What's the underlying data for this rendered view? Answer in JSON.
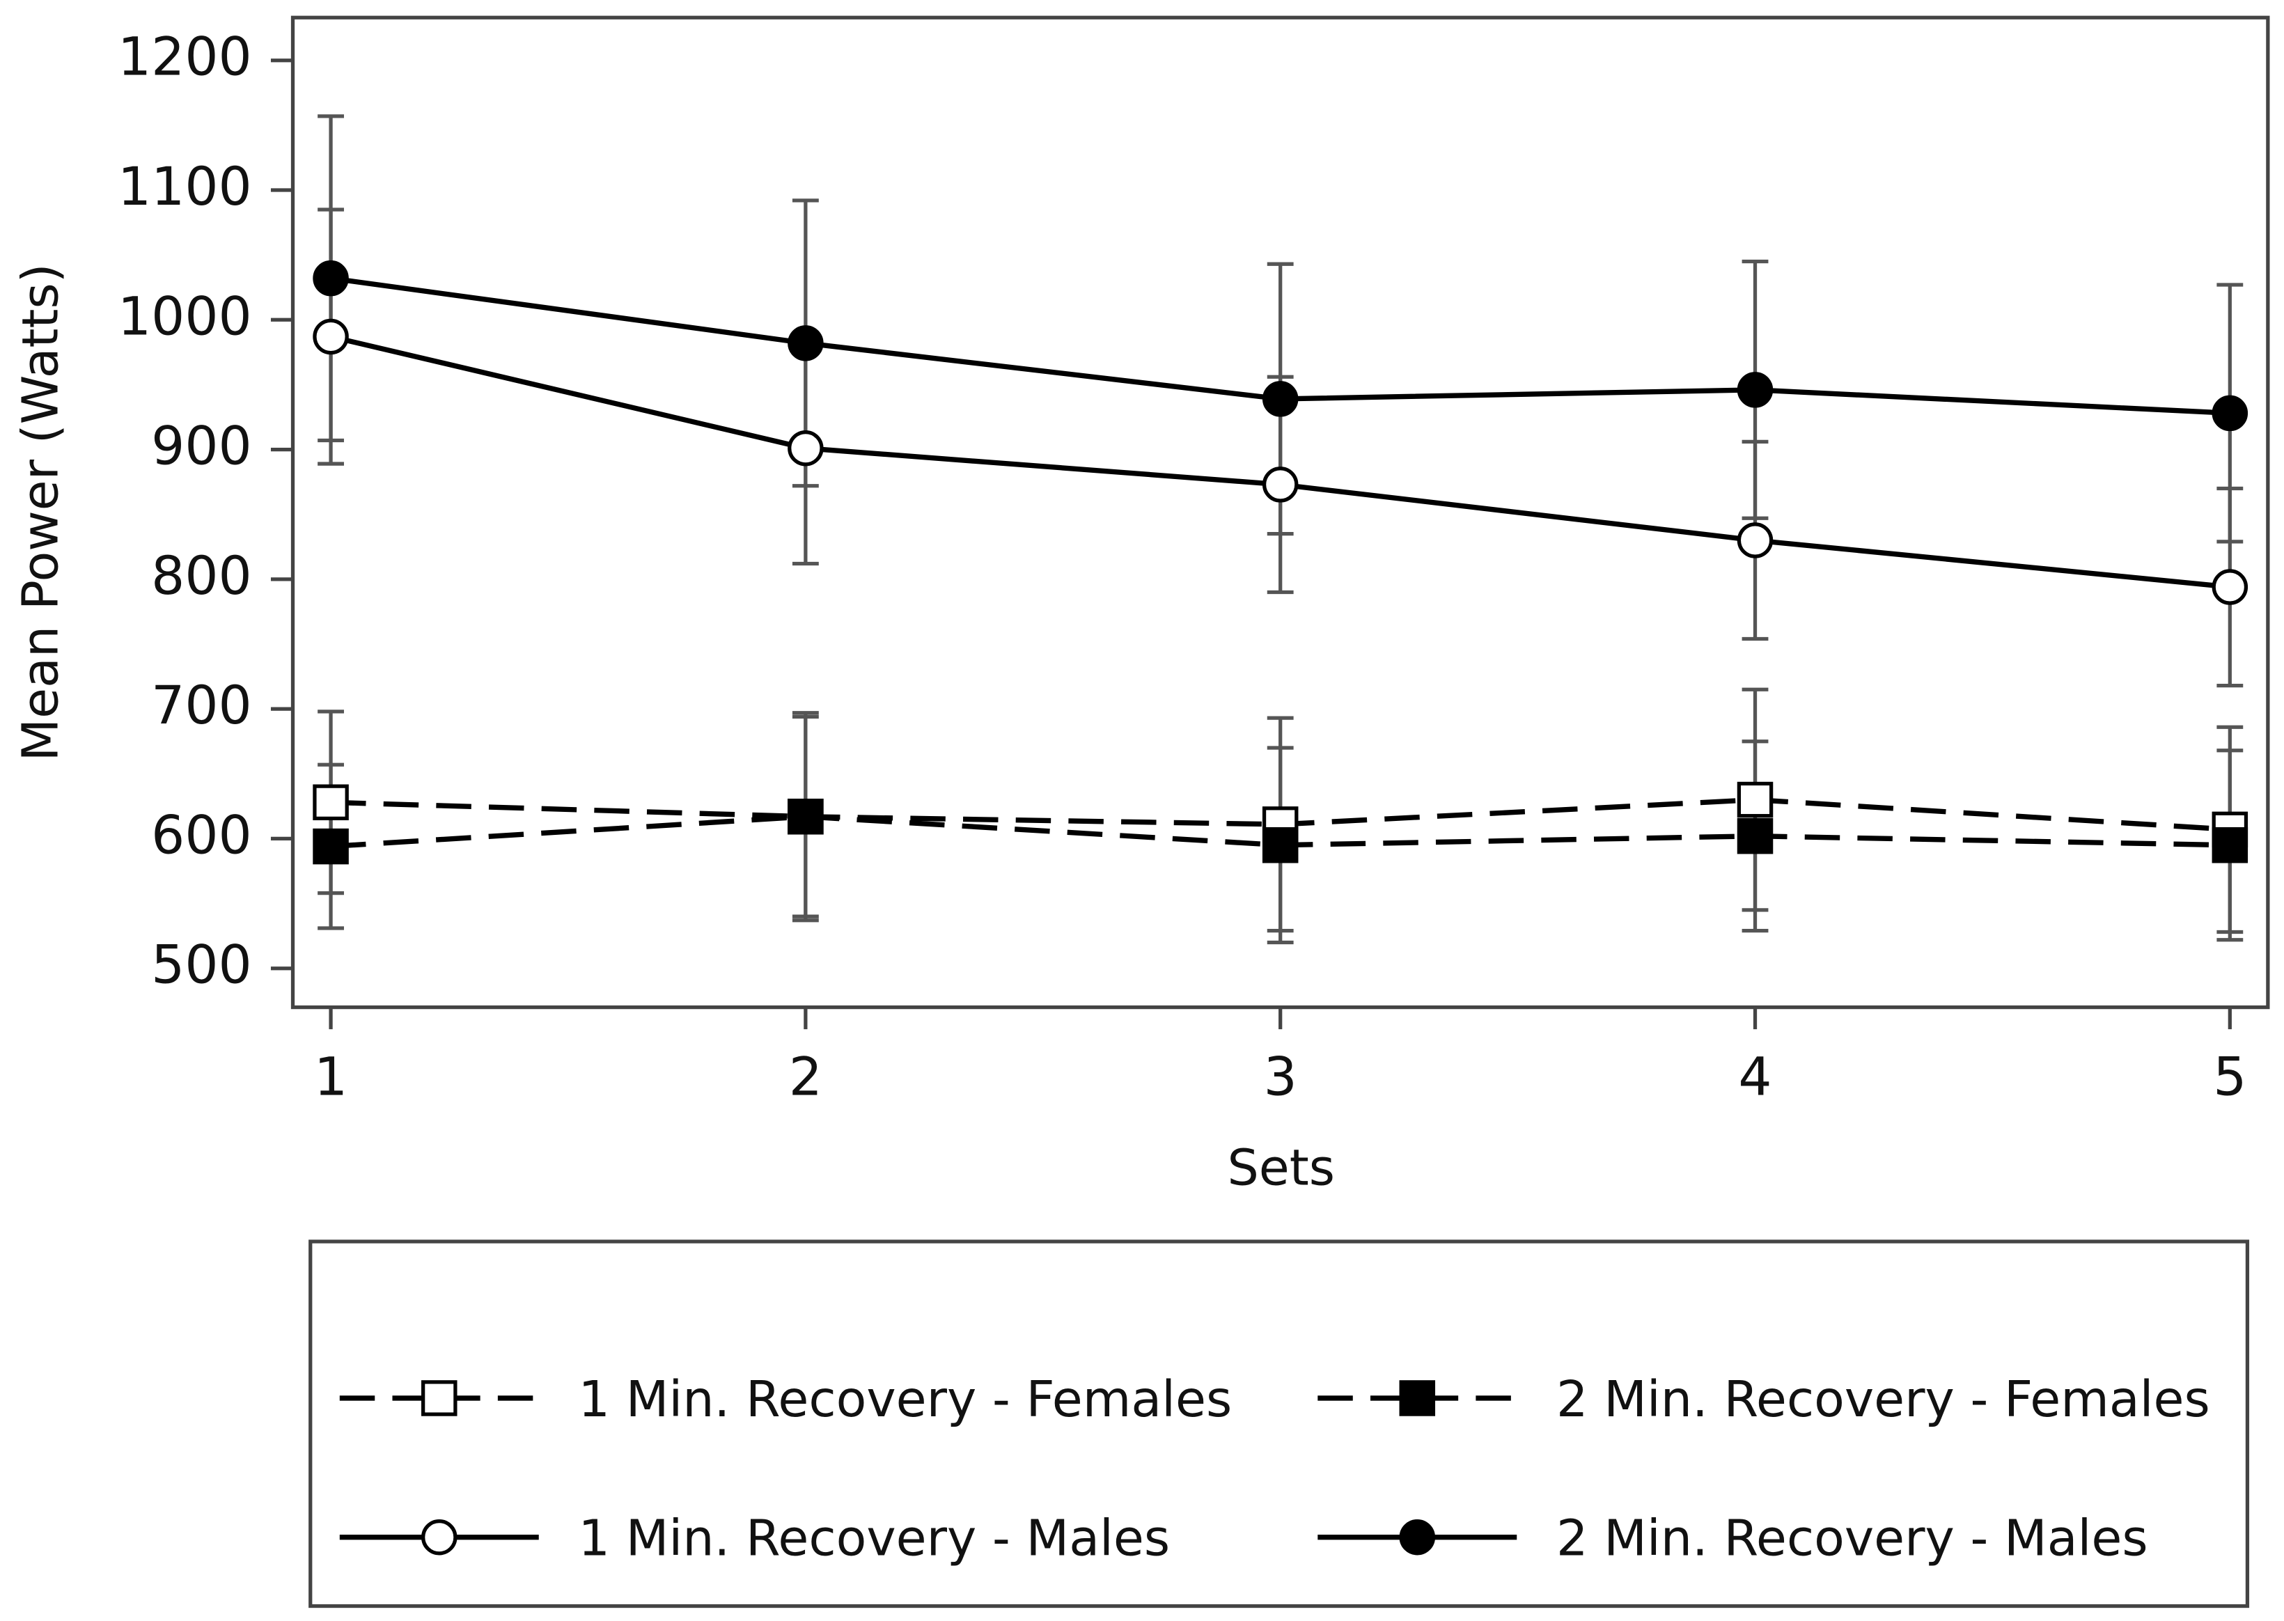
{
  "chart_data": {
    "type": "line",
    "x_label": "Sets",
    "y_label": "Mean Power (Watts)",
    "x": [
      1,
      2,
      3,
      4,
      5
    ],
    "xlim": [
      0.92,
      5.08
    ],
    "xticks": [
      1,
      2,
      3,
      4,
      5
    ],
    "ylim": [
      470,
      1233
    ],
    "yticks": [
      500,
      600,
      700,
      800,
      900,
      1000,
      1100,
      1200
    ],
    "series": [
      {
        "name": "1 Min. Recovery - Females",
        "color": "#000000",
        "marker": "square",
        "filled": false,
        "dashed": true,
        "values": [
          628,
          617,
          611,
          630,
          607
        ],
        "errors": [
          70,
          80,
          82,
          85,
          79
        ]
      },
      {
        "name": "2 Min. Recovery - Females",
        "color": "#000000",
        "marker": "square",
        "filled": true,
        "dashed": true,
        "values": [
          594,
          617,
          595,
          602,
          595
        ],
        "errors": [
          63,
          77,
          75,
          73,
          73
        ]
      },
      {
        "name": "1 Min. Recovery - Males",
        "color": "#000000",
        "marker": "circle",
        "filled": false,
        "dashed": false,
        "values": [
          987,
          901,
          873,
          830,
          794
        ],
        "errors": [
          98,
          89,
          83,
          76,
          76
        ]
      },
      {
        "name": "2 Min. Recovery - Males",
        "color": "#000000",
        "marker": "circle",
        "filled": true,
        "dashed": false,
        "values": [
          1032,
          982,
          939,
          946,
          928
        ],
        "errors": [
          125,
          110,
          104,
          99,
          99
        ]
      }
    ],
    "error_bar_color": "#555555"
  }
}
